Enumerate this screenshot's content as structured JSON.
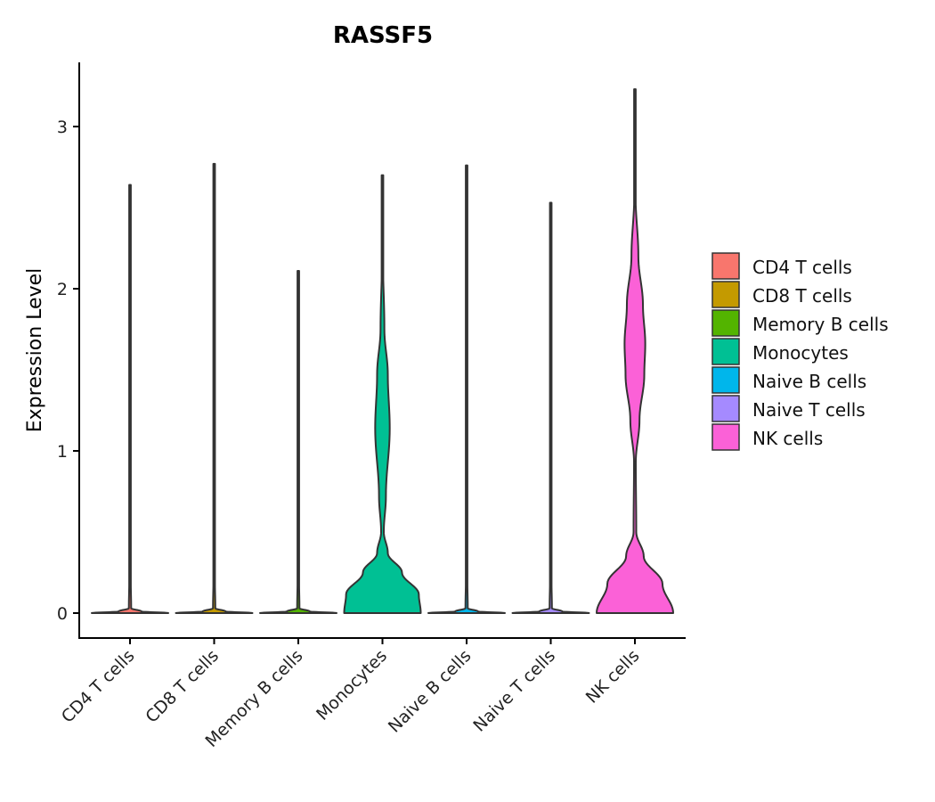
{
  "chart_data": {
    "type": "violin",
    "title": "RASSF5",
    "xlabel": "",
    "ylabel": "Expression Level",
    "ylim": [
      -0.15,
      3.4
    ],
    "yticks": [
      0,
      1,
      2,
      3
    ],
    "legend_position": "right",
    "categories": [
      "CD4 T cells",
      "CD8 T cells",
      "Memory B cells",
      "Monocytes",
      "Naive B cells",
      "Naive T cells",
      "NK cells"
    ],
    "colors": [
      "#F8766D",
      "#C49A00",
      "#53B400",
      "#00C094",
      "#00B6EB",
      "#A58AFF",
      "#FB61D7"
    ],
    "max_values": [
      2.64,
      2.77,
      2.11,
      2.7,
      2.76,
      2.53,
      3.23
    ],
    "density_profiles": [
      [
        [
          0,
          1
        ],
        [
          0.01,
          0.3
        ],
        [
          0.03,
          0.03
        ],
        [
          0.2,
          0.02
        ],
        [
          2.64,
          0.0
        ]
      ],
      [
        [
          0,
          1
        ],
        [
          0.01,
          0.3
        ],
        [
          0.03,
          0.03
        ],
        [
          0.2,
          0.02
        ],
        [
          2.77,
          0.0
        ]
      ],
      [
        [
          0,
          1
        ],
        [
          0.01,
          0.3
        ],
        [
          0.03,
          0.03
        ],
        [
          0.2,
          0.02
        ],
        [
          2.11,
          0.0
        ]
      ],
      [
        [
          0,
          1
        ],
        [
          0.115,
          0.95
        ],
        [
          0.25,
          0.51
        ],
        [
          0.37,
          0.14
        ],
        [
          0.5,
          0.035
        ],
        [
          0.72,
          0.09
        ],
        [
          1.14,
          0.19
        ],
        [
          1.47,
          0.14
        ],
        [
          1.75,
          0.05
        ],
        [
          2.2,
          0.012
        ],
        [
          2.7,
          0
        ]
      ],
      [
        [
          0,
          1
        ],
        [
          0.01,
          0.3
        ],
        [
          0.03,
          0.03
        ],
        [
          0.2,
          0.02
        ],
        [
          2.76,
          0.0
        ]
      ],
      [
        [
          0,
          1
        ],
        [
          0.01,
          0.3
        ],
        [
          0.03,
          0.03
        ],
        [
          0.2,
          0.02
        ],
        [
          2.53,
          0.0
        ]
      ],
      [
        [
          0,
          1
        ],
        [
          0.18,
          0.72
        ],
        [
          0.35,
          0.23
        ],
        [
          0.5,
          0.035
        ],
        [
          0.93,
          0.023
        ],
        [
          1.19,
          0.12
        ],
        [
          1.47,
          0.245
        ],
        [
          1.66,
          0.27
        ],
        [
          1.9,
          0.21
        ],
        [
          2.2,
          0.09
        ],
        [
          2.58,
          0.016
        ],
        [
          3.23,
          0
        ]
      ]
    ]
  }
}
